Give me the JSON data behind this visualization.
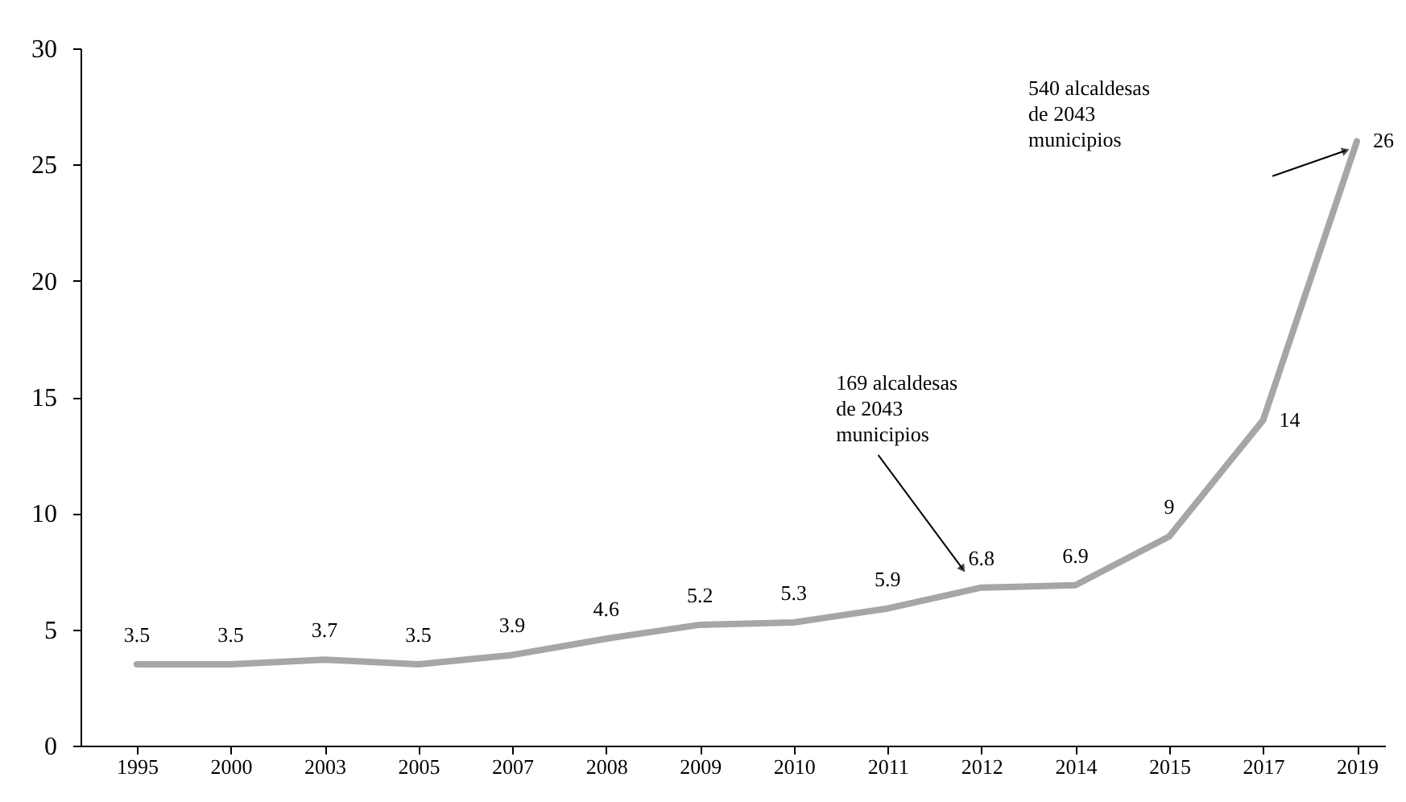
{
  "chart_data": {
    "type": "line",
    "categories": [
      "1995",
      "2000",
      "2003",
      "2005",
      "2007",
      "2008",
      "2009",
      "2010",
      "2011",
      "2012",
      "2014",
      "2015",
      "2017",
      "2019"
    ],
    "series": [
      {
        "color": "#a6a6a6",
        "values": [
          3.5,
          3.5,
          3.7,
          3.5,
          3.9,
          4.6,
          5.2,
          5.3,
          5.9,
          6.8,
          6.9,
          9,
          14,
          26
        ]
      }
    ],
    "ylim": [
      0,
      30
    ],
    "yticks": [
      0,
      5,
      10,
      15,
      20,
      25,
      30
    ],
    "grid": false,
    "data_labels": true,
    "annotations": [
      "169 alcaldesas\nde 2043\nmunicipios",
      "540 alcaldesas\nde 2043\nmunicipios"
    ]
  }
}
